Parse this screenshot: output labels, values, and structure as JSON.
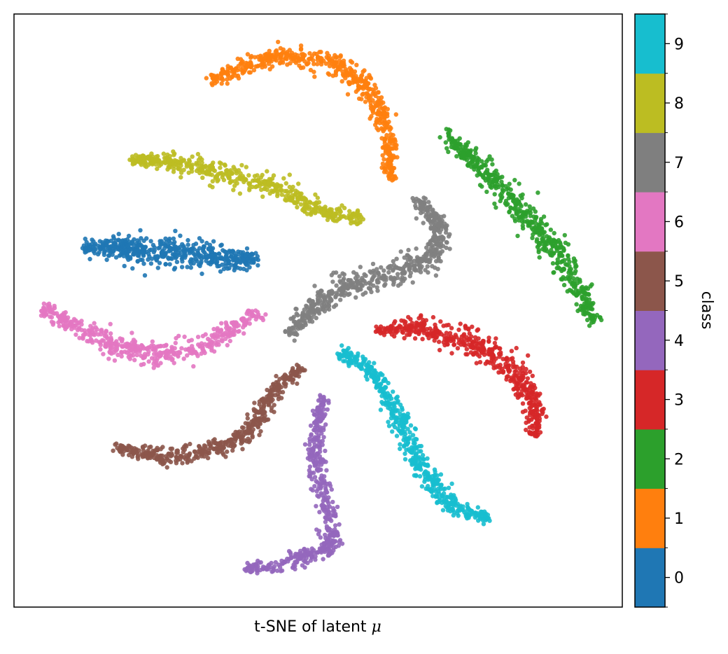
{
  "chart_data": {
    "type": "scatter",
    "title": "",
    "xlabel": "t-SNE of latent",
    "xlabel_symbol": "μ",
    "ylabel": "",
    "xticks": "none",
    "yticks": "none",
    "grid": false,
    "xlim": [
      0,
      100
    ],
    "ylim": [
      0,
      100
    ],
    "colorbar": {
      "label": "class",
      "position": "right",
      "ticks": [
        "0",
        "1",
        "2",
        "3",
        "4",
        "5",
        "6",
        "7",
        "8",
        "9"
      ],
      "colors": [
        "#1f77b4",
        "#ff7f0e",
        "#2ca02c",
        "#d62728",
        "#9467bd",
        "#8c564b",
        "#e377c2",
        "#7f7f7f",
        "#bcbd22",
        "#17becf"
      ]
    },
    "series": [
      {
        "class": "0",
        "path": [
          [
            11.5,
            60.5
          ],
          [
            16,
            60.8
          ],
          [
            22,
            60.2
          ],
          [
            28,
            59.8
          ],
          [
            34,
            58.8
          ],
          [
            39.7,
            58.6
          ]
        ],
        "thickness": 2.8,
        "count": 520
      },
      {
        "class": "1",
        "path": [
          [
            32.5,
            88.8
          ],
          [
            38,
            91.3
          ],
          [
            44.5,
            93.3
          ],
          [
            52.5,
            91.7
          ],
          [
            58.5,
            87
          ],
          [
            61.5,
            80
          ],
          [
            62,
            72
          ]
        ],
        "thickness": 2.2,
        "count": 560
      },
      {
        "class": "2",
        "path": [
          [
            70.8,
            79.7
          ],
          [
            76,
            75
          ],
          [
            81.5,
            69
          ],
          [
            88,
            61.5
          ],
          [
            92.5,
            54.5
          ],
          [
            95.5,
            48
          ]
        ],
        "thickness": 2.6,
        "count": 540
      },
      {
        "class": "3",
        "path": [
          [
            59.5,
            46.5
          ],
          [
            66,
            47
          ],
          [
            73,
            45.5
          ],
          [
            80,
            42
          ],
          [
            85.5,
            35
          ],
          [
            85.8,
            29
          ]
        ],
        "thickness": 2.6,
        "count": 520
      },
      {
        "class": "4",
        "path": [
          [
            50.8,
            35.5
          ],
          [
            49.3,
            26
          ],
          [
            51,
            18
          ],
          [
            52.5,
            10
          ],
          [
            43,
            7
          ],
          [
            37.7,
            6.5
          ]
        ],
        "thickness": 2.0,
        "count": 470
      },
      {
        "class": "5",
        "path": [
          [
            47.5,
            40.5
          ],
          [
            43,
            37
          ],
          [
            38.5,
            29
          ],
          [
            33,
            27
          ],
          [
            26,
            25
          ],
          [
            16.5,
            27
          ]
        ],
        "thickness": 2.0,
        "count": 470
      },
      {
        "class": "6",
        "path": [
          [
            4.5,
            50.5
          ],
          [
            10,
            47.5
          ],
          [
            17,
            44
          ],
          [
            24,
            42.5
          ],
          [
            30,
            43.5
          ],
          [
            35.5,
            46.5
          ],
          [
            40.5,
            50
          ]
        ],
        "thickness": 2.4,
        "count": 480
      },
      {
        "class": "7",
        "path": [
          [
            66,
            69
          ],
          [
            70,
            64.5
          ],
          [
            69.5,
            59
          ],
          [
            62,
            56
          ],
          [
            54,
            54
          ],
          [
            49,
            50.5
          ],
          [
            45.5,
            46
          ]
        ],
        "thickness": 2.6,
        "count": 560
      },
      {
        "class": "8",
        "path": [
          [
            19.5,
            75.5
          ],
          [
            27,
            75
          ],
          [
            35,
            73
          ],
          [
            43,
            71
          ],
          [
            49.5,
            67
          ],
          [
            57.5,
            65.5
          ]
        ],
        "thickness": 2.3,
        "count": 500
      },
      {
        "class": "9",
        "path": [
          [
            53.5,
            43
          ],
          [
            59,
            40
          ],
          [
            63,
            33
          ],
          [
            66.5,
            24
          ],
          [
            72,
            17
          ],
          [
            78,
            15
          ]
        ],
        "thickness": 2.3,
        "count": 500
      }
    ]
  }
}
